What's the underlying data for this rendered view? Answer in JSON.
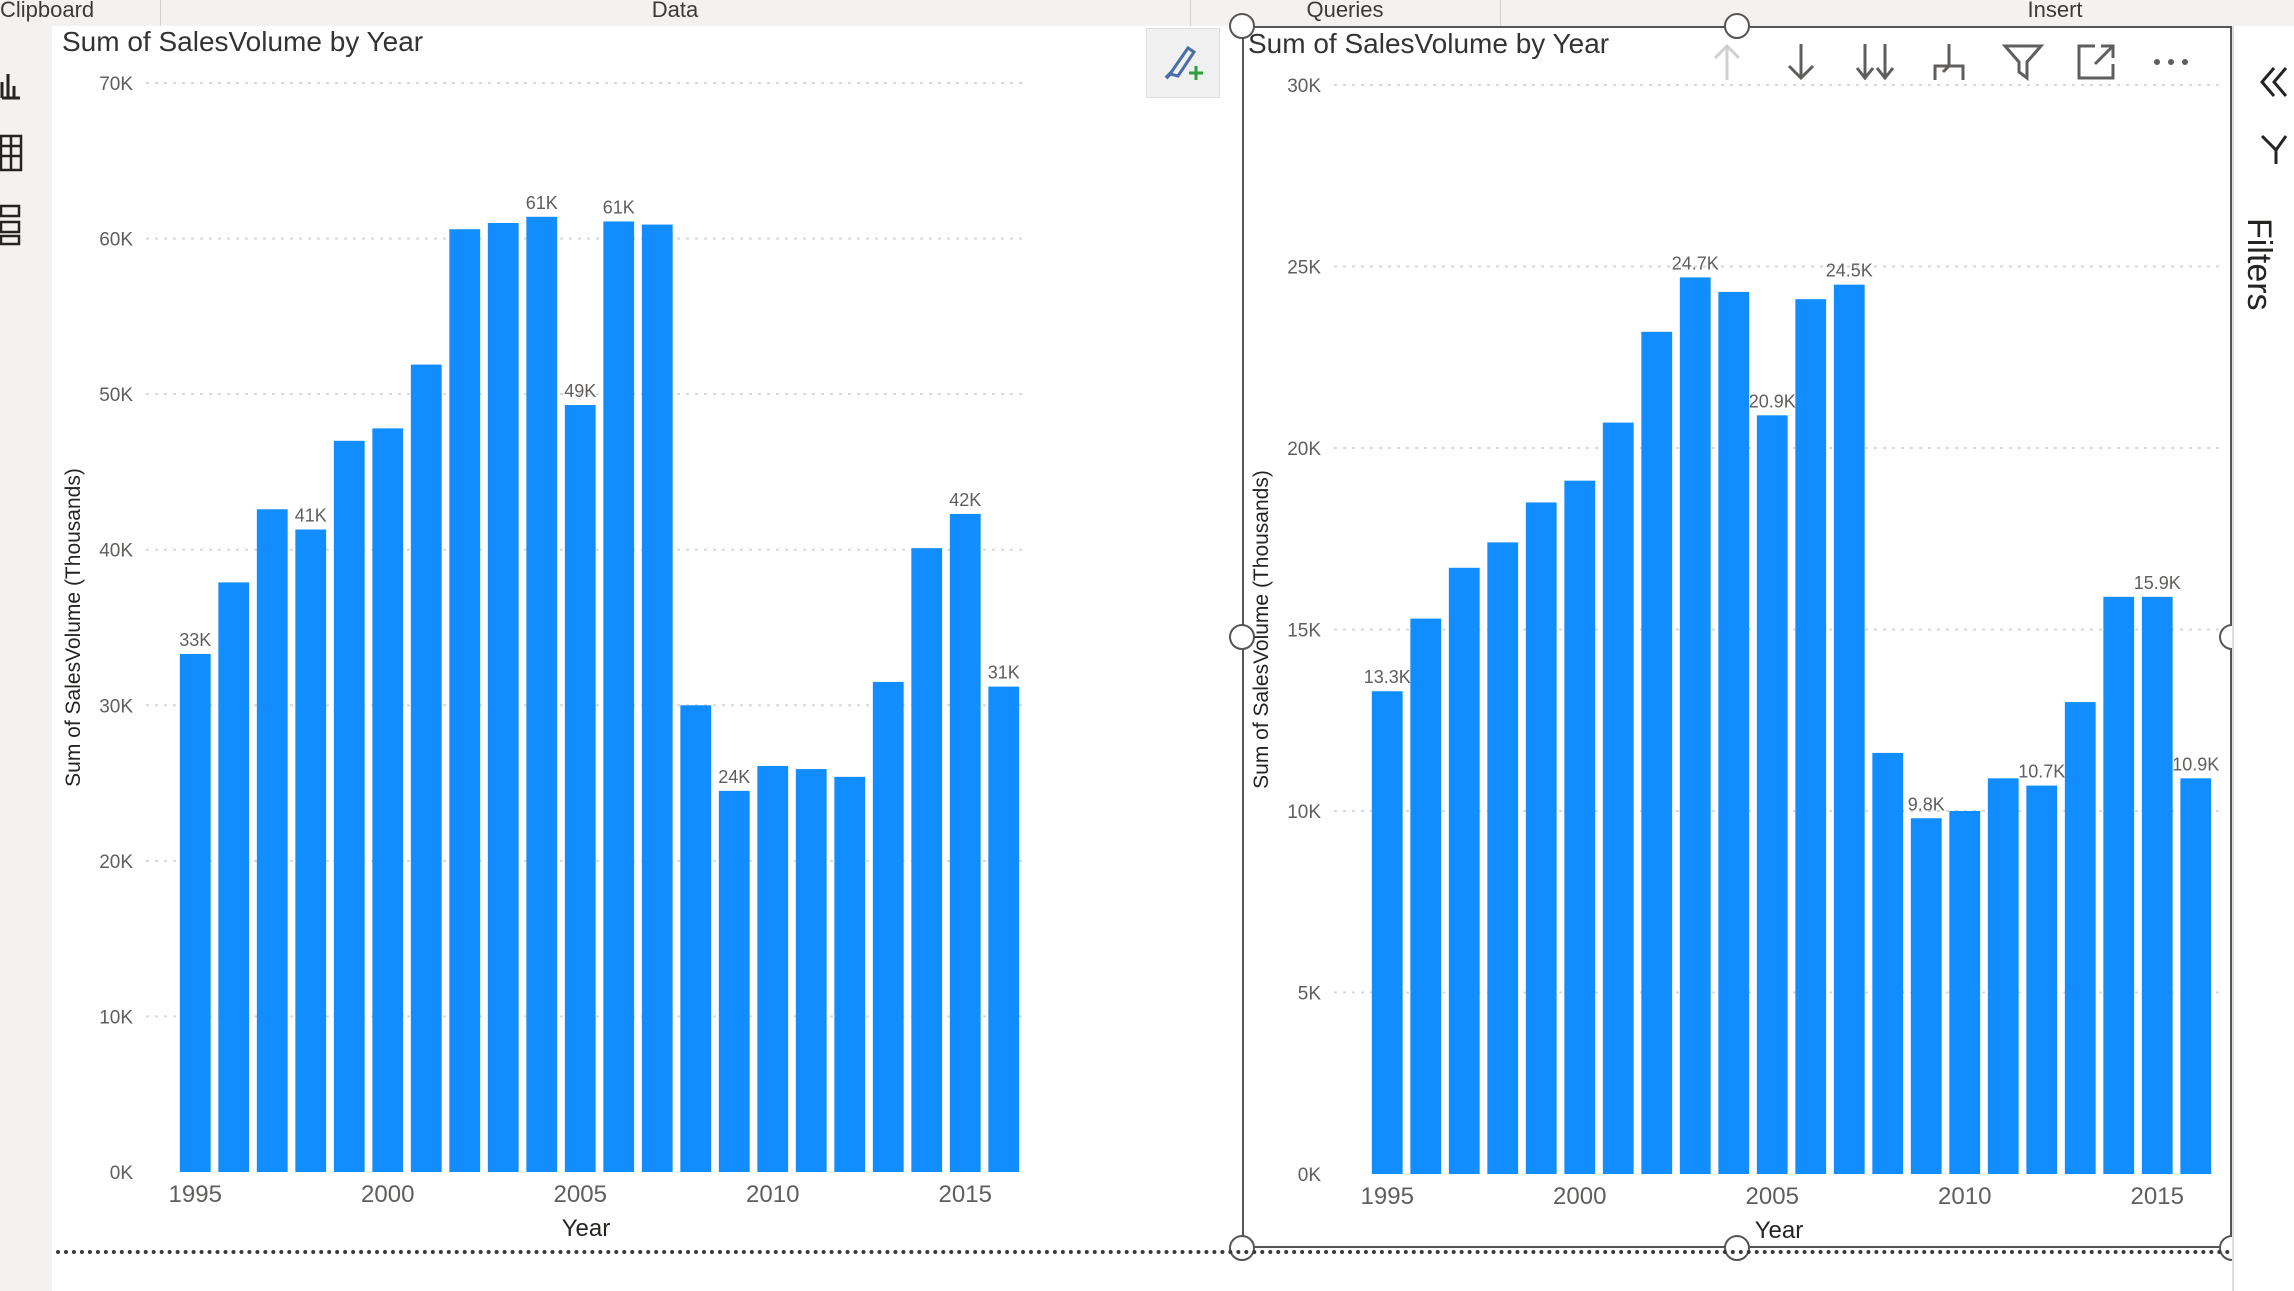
{
  "ribbon": {
    "groups": [
      "Clipboard",
      "Data",
      "Queries",
      "Insert"
    ]
  },
  "left_rail": {
    "icons": [
      "report-view-icon",
      "table-view-icon",
      "model-view-icon"
    ]
  },
  "visual_toolbar": {
    "icons": [
      "drill-up-icon",
      "drill-down-icon",
      "expand-all-down-icon",
      "expand-hierarchy-icon",
      "filter-icon",
      "focus-mode-icon",
      "more-options-icon"
    ]
  },
  "format_button": {
    "icon": "format-painter-icon"
  },
  "filters_pane": {
    "label": "Filters",
    "collapse_icon": "double-chevron-left-icon"
  },
  "colors": {
    "bar": "#118DFF",
    "grid": "#d9d9d9",
    "axis_text": "#605e5c"
  },
  "chart_data": [
    {
      "type": "bar",
      "title": "Sum of SalesVolume by Year",
      "xlabel": "Year",
      "ylabel": "Sum of SalesVolume (Thousands)",
      "ylim": [
        0,
        70000
      ],
      "yticks": [
        0,
        10000,
        20000,
        30000,
        40000,
        50000,
        60000,
        70000
      ],
      "ytick_labels": [
        "0K",
        "10K",
        "20K",
        "30K",
        "40K",
        "50K",
        "60K",
        "70K"
      ],
      "xtick_labels": [
        "1995",
        "2000",
        "2005",
        "2010",
        "2015"
      ],
      "grid": true,
      "categories": [
        "1995",
        "1996",
        "1997",
        "1998",
        "1999",
        "2000",
        "2001",
        "2002",
        "2003",
        "2004",
        "2005",
        "2006",
        "2007",
        "2008",
        "2009",
        "2010",
        "2011",
        "2012",
        "2013",
        "2014",
        "2015",
        "2016"
      ],
      "values": [
        33300,
        37900,
        42600,
        41300,
        47000,
        47800,
        51900,
        60600,
        61000,
        61400,
        49300,
        61100,
        60900,
        30000,
        24500,
        26100,
        25900,
        25400,
        31500,
        40100,
        42300,
        31200
      ],
      "data_labels": [
        "33K",
        "",
        "",
        "41K",
        "",
        "",
        "",
        "",
        "",
        "61K",
        "49K",
        "61K",
        "",
        "",
        "24K",
        "",
        "",
        "",
        "",
        "",
        "42K",
        "31K"
      ]
    },
    {
      "type": "bar",
      "title": "Sum of SalesVolume by Year",
      "xlabel": "Year",
      "ylabel": "Sum of SalesVolume (Thousands)",
      "ylim": [
        0,
        30000
      ],
      "yticks": [
        0,
        5000,
        10000,
        15000,
        20000,
        25000,
        30000
      ],
      "ytick_labels": [
        "0K",
        "5K",
        "10K",
        "15K",
        "20K",
        "25K",
        "30K"
      ],
      "xtick_labels": [
        "1995",
        "2000",
        "2005",
        "2010",
        "2015"
      ],
      "grid": true,
      "categories": [
        "1995",
        "1996",
        "1997",
        "1998",
        "1999",
        "2000",
        "2001",
        "2002",
        "2003",
        "2004",
        "2005",
        "2006",
        "2007",
        "2008",
        "2009",
        "2010",
        "2011",
        "2012",
        "2013",
        "2014",
        "2015",
        "2016"
      ],
      "values": [
        13300,
        15300,
        16700,
        17400,
        18500,
        19100,
        20700,
        23200,
        24700,
        24300,
        20900,
        24100,
        24500,
        11600,
        9800,
        10000,
        10900,
        10700,
        13000,
        15900,
        15900,
        10900
      ],
      "data_labels": [
        "13.3K",
        "",
        "",
        "",
        "",
        "",
        "",
        "",
        "24.7K",
        "",
        "20.9K",
        "",
        "24.5K",
        "",
        "9.8K",
        "",
        "",
        "10.7K",
        "",
        "",
        "15.9K",
        "10.9K"
      ]
    }
  ]
}
